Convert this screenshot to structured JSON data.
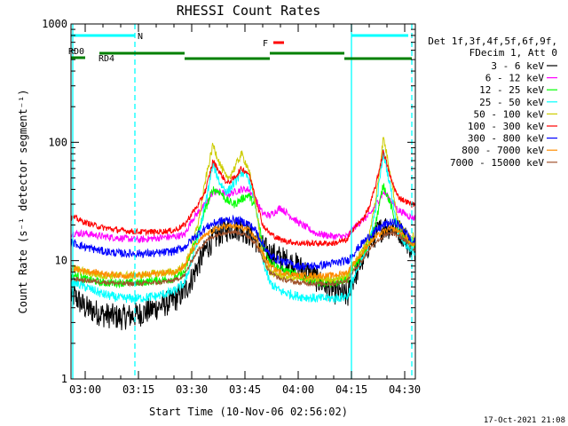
{
  "chart_data": {
    "type": "line",
    "title": "RHESSI Count Rates",
    "xlabel": "Start Time (10-Nov-06 02:56:02)",
    "ylabel": "Count Rate (s⁻¹ detector segment⁻¹)",
    "y_scale": "log",
    "ylim": [
      1,
      1000
    ],
    "xlim": [
      "02:56",
      "04:33"
    ],
    "x_ticks": [
      "03:00",
      "03:15",
      "03:30",
      "03:45",
      "04:00",
      "04:15",
      "04:30"
    ],
    "y_ticks": [
      "1",
      "10",
      "100",
      "1000"
    ],
    "legend": {
      "placement": "right",
      "header": [
        "Det 1f,3f,4f,5f,6f,9f,",
        "FDecim 1, Att 0"
      ]
    },
    "x": [
      "02:57",
      "03:00",
      "03:05",
      "03:10",
      "03:15",
      "03:20",
      "03:25",
      "03:28",
      "03:30",
      "03:32",
      "03:34",
      "03:36",
      "03:38",
      "03:40",
      "03:42",
      "03:44",
      "03:46",
      "03:48",
      "03:50",
      "03:52",
      "03:55",
      "04:00",
      "04:05",
      "04:10",
      "04:14",
      "04:15",
      "04:18",
      "04:20",
      "04:22",
      "04:24",
      "04:26",
      "04:28",
      "04:30",
      "04:32"
    ],
    "series": [
      {
        "name": "3 - 6 keV",
        "color": "#000000",
        "values": [
          5.0,
          4.0,
          3.5,
          3.3,
          3.5,
          4.0,
          4.6,
          5.5,
          7.0,
          9.5,
          12.5,
          15.0,
          17.0,
          18.5,
          19.0,
          18.5,
          17.0,
          15.0,
          13.0,
          11.5,
          10.5,
          9.0,
          7.0,
          5.5,
          5.0,
          6.5,
          10.0,
          14.0,
          17.0,
          19.0,
          19.5,
          18.5,
          16.0,
          12.5
        ]
      },
      {
        "name": "6 - 12 keV",
        "color": "#ff00ff",
        "values": [
          17.0,
          17.0,
          16.0,
          15.5,
          15.0,
          15.5,
          16.0,
          16.5,
          22.0,
          26.0,
          30.0,
          38.0,
          38.0,
          36.0,
          38.0,
          40.0,
          40.0,
          33.0,
          25.0,
          24.0,
          28.0,
          21.0,
          17.0,
          16.0,
          16.0,
          18.0,
          22.0,
          24.0,
          30.0,
          38.0,
          33.0,
          27.0,
          25.0,
          23.0
        ]
      },
      {
        "name": "12 - 25 keV",
        "color": "#00ff00",
        "values": [
          7.5,
          7.0,
          6.5,
          6.5,
          6.5,
          6.8,
          7.0,
          8.0,
          12.0,
          18.0,
          28.0,
          40.0,
          38.0,
          32.0,
          30.0,
          33.0,
          36.0,
          28.0,
          14.0,
          10.0,
          8.5,
          7.5,
          6.5,
          6.5,
          7.0,
          8.5,
          11.0,
          14.0,
          22.0,
          44.0,
          30.0,
          18.0,
          15.0,
          14.0
        ]
      },
      {
        "name": "25 - 50 keV",
        "color": "#00ffff",
        "values": [
          6.5,
          6.0,
          5.2,
          4.8,
          4.8,
          5.0,
          5.5,
          6.5,
          10.0,
          16.0,
          32.0,
          65.0,
          45.0,
          38.0,
          45.0,
          56.0,
          50.0,
          30.0,
          10.0,
          6.5,
          5.5,
          5.0,
          4.8,
          4.8,
          5.0,
          6.5,
          10.0,
          14.0,
          30.0,
          82.0,
          42.0,
          18.0,
          14.0,
          12.0
        ]
      },
      {
        "name": "50 - 100 keV",
        "color": "#cccc00",
        "values": [
          8.5,
          8.0,
          7.5,
          7.5,
          7.5,
          7.8,
          8.0,
          9.0,
          13.0,
          22.0,
          50.0,
          95.0,
          65.0,
          48.0,
          60.0,
          80.0,
          60.0,
          30.0,
          11.0,
          8.0,
          7.5,
          7.0,
          7.0,
          7.0,
          7.5,
          9.0,
          12.0,
          16.0,
          35.0,
          110.0,
          55.0,
          22.0,
          17.0,
          16.0
        ]
      },
      {
        "name": "100 - 300 keV",
        "color": "#ff0000",
        "values": [
          23.0,
          21.0,
          19.0,
          18.0,
          17.5,
          17.5,
          18.0,
          20.0,
          25.0,
          30.0,
          40.0,
          70.0,
          55.0,
          45.0,
          50.0,
          60.0,
          55.0,
          35.0,
          20.0,
          17.0,
          15.0,
          14.0,
          14.0,
          14.0,
          15.0,
          18.0,
          22.0,
          28.0,
          45.0,
          85.0,
          50.0,
          35.0,
          32.0,
          30.0
        ]
      },
      {
        "name": "300 - 800 keV",
        "color": "#0000ff",
        "values": [
          14.0,
          13.0,
          12.0,
          11.5,
          11.5,
          11.5,
          12.0,
          13.0,
          15.0,
          17.0,
          19.0,
          20.5,
          21.5,
          22.0,
          22.0,
          21.5,
          20.5,
          18.0,
          14.0,
          11.0,
          10.0,
          9.0,
          9.0,
          9.5,
          10.0,
          11.0,
          14.0,
          16.0,
          18.0,
          20.0,
          21.0,
          20.5,
          18.0,
          14.5
        ]
      },
      {
        "name": "800 - 7000 keV",
        "color": "#ff8c00",
        "values": [
          8.5,
          8.2,
          7.8,
          7.5,
          7.5,
          7.8,
          8.0,
          9.0,
          12.0,
          14.5,
          16.5,
          18.0,
          19.0,
          19.5,
          19.5,
          19.0,
          18.0,
          15.5,
          11.5,
          9.0,
          8.0,
          7.5,
          7.5,
          7.5,
          8.0,
          9.0,
          11.5,
          14.0,
          16.0,
          17.5,
          18.5,
          18.0,
          16.0,
          13.5
        ]
      },
      {
        "name": "7000 - 15000 keV",
        "color": "#a0522d",
        "values": [
          7.0,
          6.8,
          6.6,
          6.4,
          6.4,
          6.5,
          6.8,
          7.5,
          10.0,
          12.5,
          14.5,
          16.0,
          17.0,
          17.5,
          17.5,
          17.0,
          16.0,
          14.0,
          10.5,
          8.0,
          7.0,
          6.5,
          6.4,
          6.4,
          6.8,
          7.8,
          10.0,
          12.5,
          14.5,
          16.0,
          17.0,
          16.5,
          15.0,
          12.5
        ]
      }
    ],
    "annotations": [
      {
        "label": "N",
        "color": "#00ffff",
        "intervals": [
          [
            "02:56",
            "03:14"
          ],
          [
            "04:15",
            "04:31"
          ]
        ]
      },
      {
        "label": "F",
        "color": "#ff0000",
        "intervals": [
          [
            "03:53",
            "03:56"
          ]
        ]
      },
      {
        "label": "RD0",
        "color": "#008000",
        "intervals": [
          [
            "02:56",
            "03:00"
          ]
        ]
      },
      {
        "label": "RD4",
        "color": "#008000",
        "intervals": [
          [
            "03:04",
            "03:28"
          ],
          [
            "03:28",
            "03:52"
          ],
          [
            "03:52",
            "04:13"
          ],
          [
            "04:13",
            "04:32"
          ]
        ]
      }
    ],
    "vertical_lines": [
      {
        "at": "02:56:30",
        "color": "#00ffff",
        "style": "solid"
      },
      {
        "at": "03:14",
        "color": "#00ffff",
        "style": "dashed"
      },
      {
        "at": "04:15",
        "color": "#00ffff",
        "style": "solid"
      },
      {
        "at": "04:32",
        "color": "#00ffff",
        "style": "dashed"
      }
    ]
  },
  "footer": {
    "timestamp": "17-Oct-2021 21:08"
  }
}
